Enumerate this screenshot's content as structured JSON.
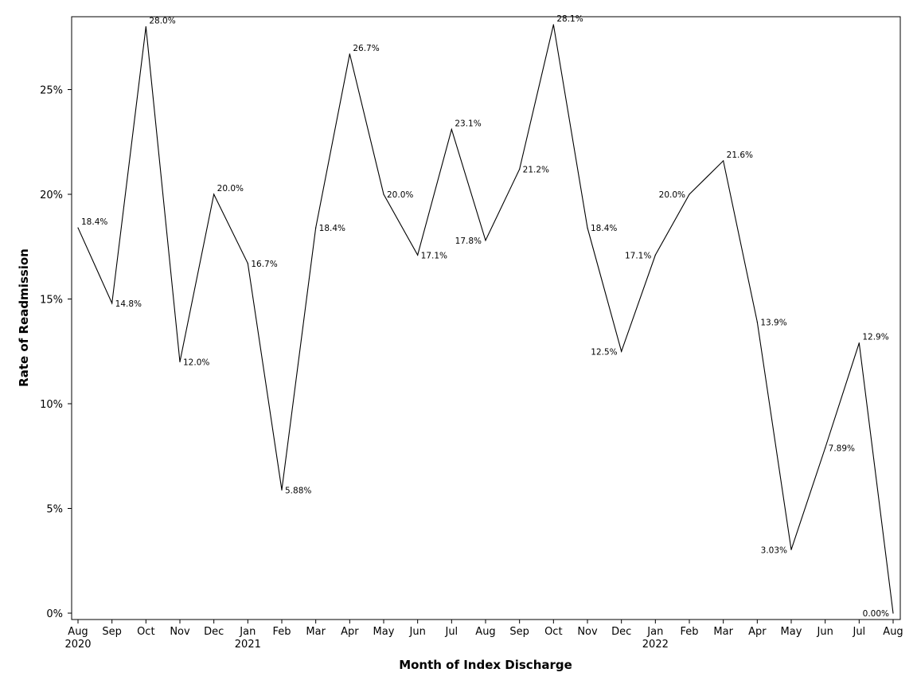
{
  "chart_data": {
    "type": "line",
    "xlabel": "Month of Index Discharge",
    "ylabel": "Rate of Readmission",
    "ylim": [
      0,
      28.5
    ],
    "yticks": [
      {
        "value": 0,
        "label": "0%"
      },
      {
        "value": 5,
        "label": "5%"
      },
      {
        "value": 10,
        "label": "10%"
      },
      {
        "value": 15,
        "label": "15%"
      },
      {
        "value": 20,
        "label": "20%"
      },
      {
        "value": 25,
        "label": "25%"
      }
    ],
    "grid": false,
    "legend": "none",
    "series": [
      {
        "color": "#000000",
        "points": [
          {
            "month": "Aug",
            "year": "2020",
            "value": 18.4,
            "label": "18.4%"
          },
          {
            "month": "Sep",
            "year": "",
            "value": 14.8,
            "label": "14.8%"
          },
          {
            "month": "Oct",
            "year": "",
            "value": 28.0,
            "label": "28.0%"
          },
          {
            "month": "Nov",
            "year": "",
            "value": 12.0,
            "label": "12.0%"
          },
          {
            "month": "Dec",
            "year": "",
            "value": 20.0,
            "label": "20.0%"
          },
          {
            "month": "Jan",
            "year": "2021",
            "value": 16.7,
            "label": "16.7%"
          },
          {
            "month": "Feb",
            "year": "",
            "value": 5.88,
            "label": "5.88%"
          },
          {
            "month": "Mar",
            "year": "",
            "value": 18.4,
            "label": "18.4%"
          },
          {
            "month": "Apr",
            "year": "",
            "value": 26.7,
            "label": "26.7%"
          },
          {
            "month": "May",
            "year": "",
            "value": 20.0,
            "label": "20.0%"
          },
          {
            "month": "Jun",
            "year": "",
            "value": 17.1,
            "label": "17.1%"
          },
          {
            "month": "Jul",
            "year": "",
            "value": 23.1,
            "label": "23.1%"
          },
          {
            "month": "Aug",
            "year": "",
            "value": 17.8,
            "label": "17.8%"
          },
          {
            "month": "Sep",
            "year": "",
            "value": 21.2,
            "label": "21.2%"
          },
          {
            "month": "Oct",
            "year": "",
            "value": 28.1,
            "label": "28.1%"
          },
          {
            "month": "Nov",
            "year": "",
            "value": 18.4,
            "label": "18.4%"
          },
          {
            "month": "Dec",
            "year": "",
            "value": 12.5,
            "label": "12.5%"
          },
          {
            "month": "Jan",
            "year": "2022",
            "value": 17.1,
            "label": "17.1%"
          },
          {
            "month": "Feb",
            "year": "",
            "value": 20.0,
            "label": "20.0%"
          },
          {
            "month": "Mar",
            "year": "",
            "value": 21.6,
            "label": "21.6%"
          },
          {
            "month": "Apr",
            "year": "",
            "value": 13.9,
            "label": "13.9%"
          },
          {
            "month": "May",
            "year": "",
            "value": 3.03,
            "label": "3.03%"
          },
          {
            "month": "Jun",
            "year": "",
            "value": 7.89,
            "label": "7.89%"
          },
          {
            "month": "Jul",
            "year": "",
            "value": 12.9,
            "label": "12.9%"
          },
          {
            "month": "Aug",
            "year": "",
            "value": 0.0,
            "label": "0.00%"
          }
        ]
      }
    ]
  }
}
